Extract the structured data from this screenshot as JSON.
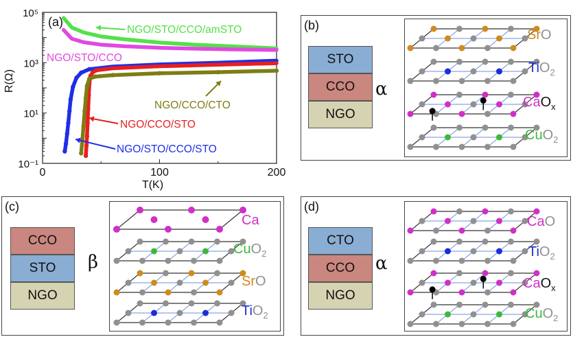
{
  "colors": {
    "sto": "#8aadd3",
    "cco": "#c9877f",
    "ngo": "#d6d3b3",
    "cto": "#8aadd3",
    "sr": "#d08a1f",
    "ti": "#1a2fd6",
    "ca": "#d02fc8",
    "cu": "#3cb93c",
    "o": "#909090",
    "vac": "#000000",
    "grid_line": "#6b8fd8"
  },
  "panel_a": {
    "label": "(a)",
    "chart_data": {
      "type": "line",
      "xlabel": "T(K)",
      "ylabel": "R(Ω)",
      "ylog": true,
      "xlim": [
        0,
        200
      ],
      "ylim": [
        0.1,
        100000
      ],
      "xticks": [
        "0",
        "100",
        "200"
      ],
      "yticks": [
        "10⁻¹",
        "10¹",
        "10³",
        "10⁵"
      ],
      "series": [
        {
          "name": "NGO/STO/CCO/amSTO",
          "color": "#55e04a",
          "x": [
            18,
            25,
            35,
            50,
            70,
            100,
            130,
            160,
            200
          ],
          "y": [
            60000,
            25000,
            16000,
            11000,
            8500,
            6300,
            5200,
            4500,
            3700
          ]
        },
        {
          "name": "NGO/STO/CCO",
          "color": "#e04ae0",
          "x": [
            18,
            25,
            35,
            50,
            70,
            100,
            130,
            160,
            200
          ],
          "y": [
            20000,
            9000,
            6500,
            5200,
            4500,
            3900,
            3600,
            3400,
            3200
          ]
        },
        {
          "name": "NGO/STO/CCO/STO",
          "color": "#1f2ee8",
          "x": [
            19,
            20,
            21,
            22,
            23,
            24,
            26,
            29,
            33,
            40,
            60,
            100,
            150,
            200
          ],
          "y": [
            0.3,
            0.6,
            1.5,
            4,
            12,
            35,
            110,
            250,
            400,
            550,
            700,
            850,
            1000,
            1200
          ]
        },
        {
          "name": "NGO/CCO/STO",
          "color": "#e81f1f",
          "x": [
            37,
            37.5,
            38,
            38.5,
            39,
            39.5,
            40,
            41,
            43,
            46,
            60,
            100,
            150,
            200
          ],
          "y": [
            0.2,
            0.5,
            1.2,
            4,
            15,
            50,
            150,
            300,
            420,
            500,
            600,
            720,
            830,
            950
          ]
        },
        {
          "name": "NGO/CCO/CTO",
          "color": "#7d7d14",
          "x": [
            33,
            34,
            35,
            36,
            37,
            38,
            40,
            45,
            60,
            100,
            150,
            200
          ],
          "y": [
            0.25,
            0.8,
            3,
            12,
            40,
            120,
            230,
            280,
            320,
            380,
            420,
            480
          ]
        }
      ]
    }
  },
  "panel_b": {
    "label": "(b)",
    "stack": [
      "STO",
      "CCO",
      "NGO"
    ],
    "greek": "α",
    "layers": [
      {
        "main": "Sr",
        "o": "O",
        "sub": "",
        "xs": "",
        "color": "sr"
      },
      {
        "main": "Ti",
        "o": "O",
        "sub": "2",
        "xs": "",
        "color": "ti"
      },
      {
        "main": "Ca",
        "o": "O",
        "sub": "",
        "xs": "x",
        "color": "ca"
      },
      {
        "main": "Cu",
        "o": "O",
        "sub": "2",
        "xs": "",
        "color": "cu"
      }
    ]
  },
  "panel_c": {
    "label": "(c)",
    "stack": [
      "CCO",
      "STO",
      "NGO"
    ],
    "greek": "β",
    "layers": [
      {
        "main": "Ca",
        "o": "",
        "sub": "",
        "xs": "",
        "color": "ca"
      },
      {
        "main": "Cu",
        "o": "O",
        "sub": "2",
        "xs": "",
        "color": "cu"
      },
      {
        "main": "Sr",
        "o": "O",
        "sub": "",
        "xs": "",
        "color": "sr"
      },
      {
        "main": "Ti",
        "o": "O",
        "sub": "2",
        "xs": "",
        "color": "ti"
      }
    ]
  },
  "panel_d": {
    "label": "(d)",
    "stack": [
      "CTO",
      "CCO",
      "NGO"
    ],
    "greek": "α",
    "layers": [
      {
        "main": "Ca",
        "o": "O",
        "sub": "",
        "xs": "",
        "color": "ca"
      },
      {
        "main": "Ti",
        "o": "O",
        "sub": "2",
        "xs": "",
        "color": "ti"
      },
      {
        "main": "Ca",
        "o": "O",
        "sub": "",
        "xs": "x",
        "color": "ca"
      },
      {
        "main": "Cu",
        "o": "O",
        "sub": "2",
        "xs": "",
        "color": "cu"
      }
    ]
  }
}
